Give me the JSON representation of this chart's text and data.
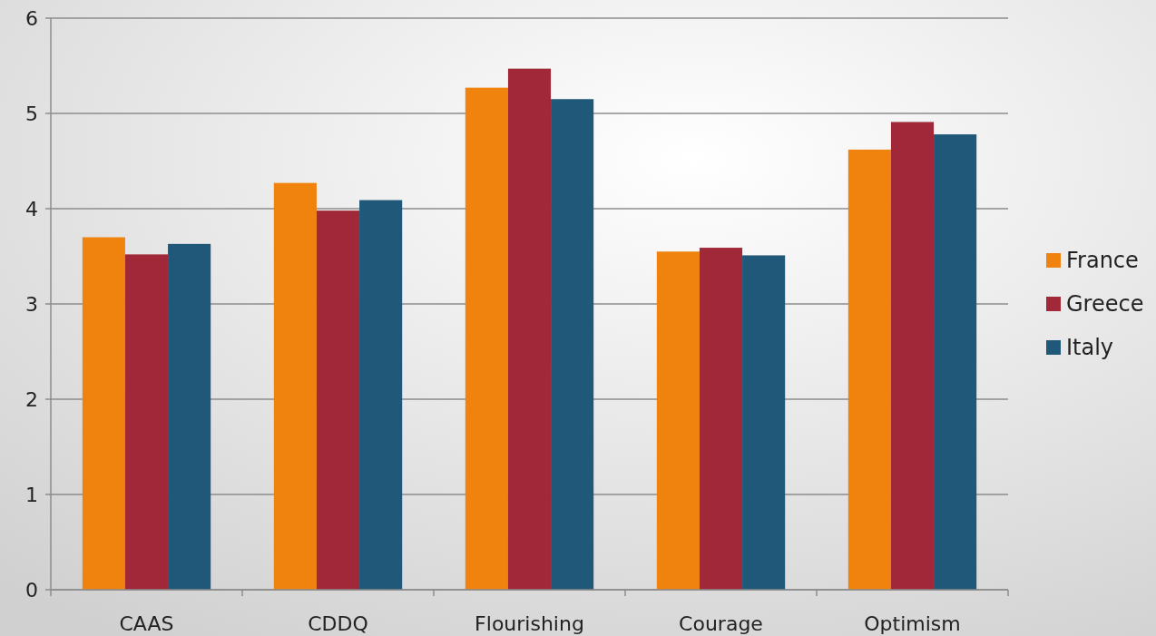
{
  "chart_data": {
    "type": "bar",
    "categories": [
      "CAAS",
      "CDDQ",
      "Flourishing",
      "Courage",
      "Optimism"
    ],
    "series": [
      {
        "name": "France",
        "color": "#f0820e",
        "values": [
          3.7,
          4.27,
          5.27,
          3.55,
          4.62
        ]
      },
      {
        "name": "Greece",
        "color": "#a02838",
        "values": [
          3.52,
          3.98,
          5.47,
          3.59,
          4.91
        ]
      },
      {
        "name": "Italy",
        "color": "#1f5878",
        "values": [
          3.63,
          4.09,
          5.15,
          3.51,
          4.78
        ]
      }
    ],
    "ylim": [
      0,
      6
    ],
    "yticks": [
      0,
      1,
      2,
      3,
      4,
      5,
      6
    ],
    "grid": "y",
    "legend": "right"
  }
}
